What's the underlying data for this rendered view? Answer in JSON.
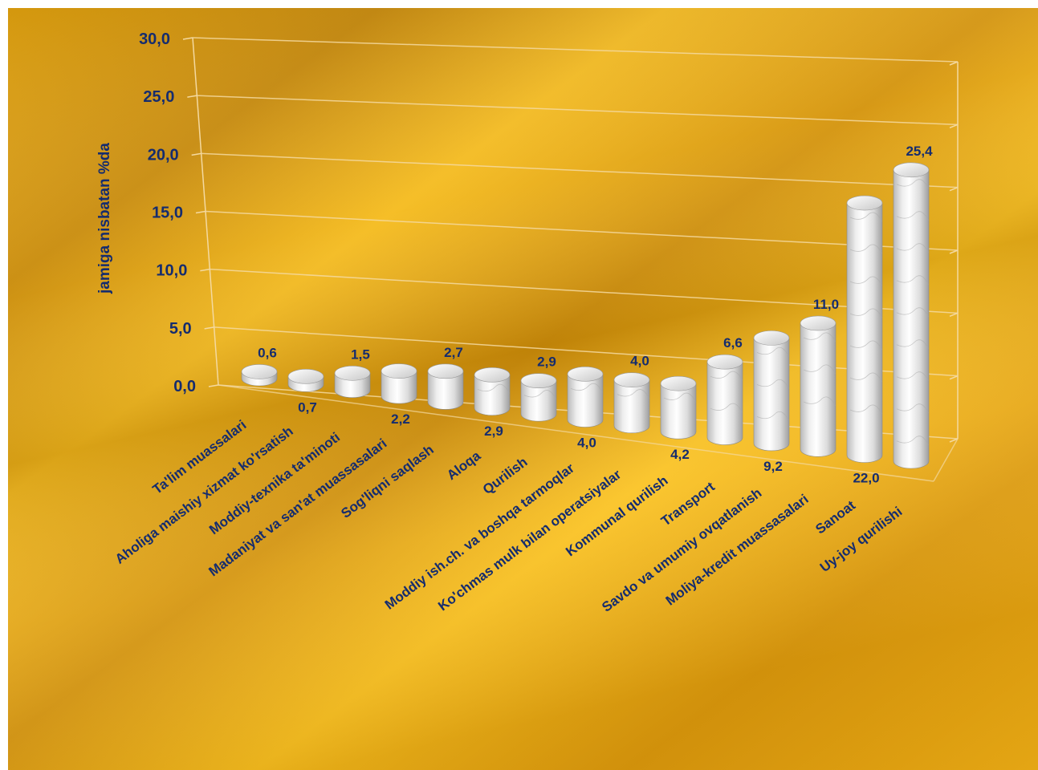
{
  "chart_data": {
    "type": "bar",
    "style": "3d-cylinder",
    "ylabel": "jamiga nisbatan %da",
    "ylim": [
      0,
      30
    ],
    "yticks": [
      "0,0",
      "5,0",
      "10,0",
      "15,0",
      "20,0",
      "25,0",
      "30,0"
    ],
    "grid": true,
    "categories": [
      "Ta'lim muassalari",
      "Aholiga maishiy xizmat ko'rsatish",
      "Moddiy-texnika ta'minoti",
      "Madaniyat va san'at muassasalari",
      "Sog'liqni saqlash",
      "Aloqa",
      "Qurilish",
      "Moddiy ish.ch. va boshqa tarmoqlar",
      "Ko'chmas mulk bilan operatsiyalar",
      "Kommunal qurilish",
      "Transport",
      "Savdo va umumiy ovqatlanish",
      "Moliya-kredit muassasalari",
      "Sanoat",
      "Uy-joy qurilishi"
    ],
    "values": [
      0.6,
      0.7,
      1.5,
      2.2,
      2.7,
      2.9,
      2.9,
      4.0,
      4.0,
      4.2,
      6.6,
      9.2,
      11.0,
      22.0,
      25.4
    ],
    "value_labels": [
      "0,6",
      "0,7",
      "1,5",
      "2,2",
      "2,7",
      "2,9",
      "2,9",
      "4,0",
      "4,0",
      "4,2",
      "6,6",
      "9,2",
      "11,0",
      "22,0",
      "25,4"
    ],
    "colors": {
      "bar": "#e8e8e8",
      "text": "#152c6e",
      "grid": "#f4d9a0",
      "background": "#e4a00c"
    }
  }
}
